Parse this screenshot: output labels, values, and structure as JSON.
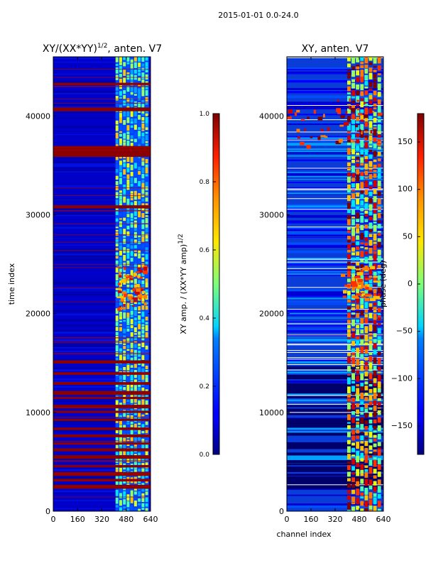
{
  "page_title": "2015-01-01 0.0-24.0",
  "chart_data": [
    {
      "type": "heatmap",
      "title_main": "XY/(XX*YY)",
      "title_exp": "1/2",
      "title_tail": ", anten. V7",
      "xlabel": "",
      "ylabel": "time index",
      "xlim": [
        0,
        640
      ],
      "ylim": [
        0,
        46000
      ],
      "xticks": [
        0,
        160,
        320,
        480,
        640
      ],
      "yticks": [
        0,
        10000,
        20000,
        30000,
        40000
      ],
      "colorbar": {
        "label_main": "XY amp. / (XX*YY amp)",
        "label_exp": "1/2",
        "range": [
          0.0,
          1.0
        ],
        "ticks": [
          "0.0",
          "0.2",
          "0.4",
          "0.6",
          "0.8",
          "1.0"
        ],
        "colormap": "jet"
      },
      "active_band_channels": [
        410,
        630
      ],
      "flagged_rows": [
        36300,
        36600,
        36900,
        14000,
        13000,
        12100,
        11500,
        10700,
        10100,
        9300,
        8400,
        7700,
        6900,
        6300,
        5600,
        4600,
        3900,
        3200,
        2600,
        15200,
        30900,
        40800,
        43300
      ]
    },
    {
      "type": "heatmap",
      "title_main": "XY, anten. V7",
      "xlabel": "channel index",
      "ylabel": "",
      "xlim": [
        0,
        640
      ],
      "ylim": [
        0,
        46000
      ],
      "xticks": [
        0,
        160,
        320,
        480,
        640
      ],
      "yticks": [
        0,
        10000,
        20000,
        30000,
        40000
      ],
      "colorbar": {
        "label": "phase (deg)",
        "range": [
          -180,
          180
        ],
        "ticks": [
          "150",
          "100",
          "50",
          "0",
          "−50",
          "−100",
          "−150"
        ],
        "colormap": "jet"
      },
      "active_band_channels": [
        400,
        630
      ]
    }
  ]
}
